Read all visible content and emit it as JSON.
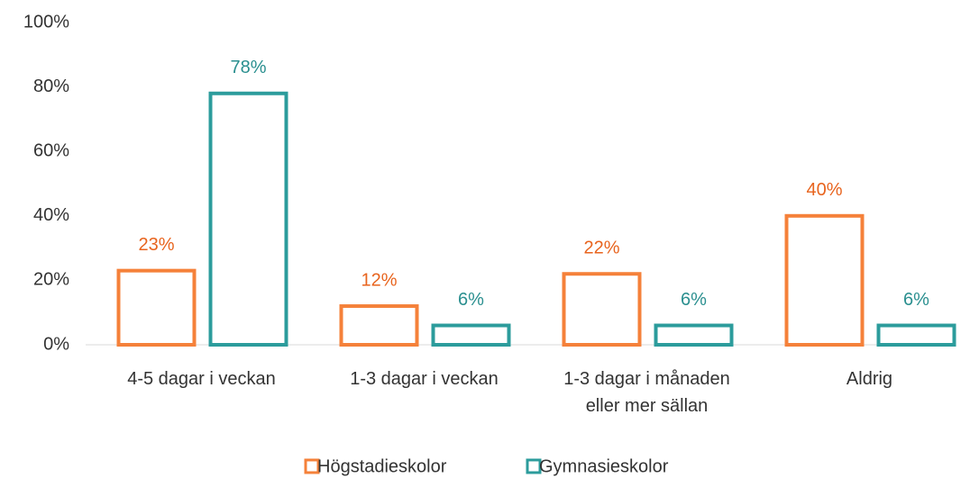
{
  "chart_data": {
    "type": "bar",
    "categories": [
      "4-5 dagar i veckan",
      "1-3 dagar i veckan",
      "1-3 dagar i månaden\neller mer sällan",
      "Aldrig"
    ],
    "series": [
      {
        "name": "Högstadieskolor",
        "color": "#f5813a",
        "label_color": "#e8641e",
        "values": [
          23,
          12,
          22,
          40
        ],
        "value_labels": [
          "23%",
          "12%",
          "22%",
          "40%"
        ]
      },
      {
        "name": "Gymnasieskolor",
        "color": "#2c9c9c",
        "label_color": "#2a8f8f",
        "values": [
          78,
          6,
          6,
          6
        ],
        "value_labels": [
          "78%",
          "6%",
          "6%",
          "6%"
        ]
      }
    ],
    "ylim": [
      0,
      100
    ],
    "yticks": [
      {
        "value": 0,
        "label": "0%"
      },
      {
        "value": 20,
        "label": "20%"
      },
      {
        "value": 40,
        "label": "40%"
      },
      {
        "value": 60,
        "label": "60%"
      },
      {
        "value": 80,
        "label": "80%"
      },
      {
        "value": 100,
        "label": "100%"
      }
    ],
    "grid": false,
    "legend": "bottom"
  }
}
